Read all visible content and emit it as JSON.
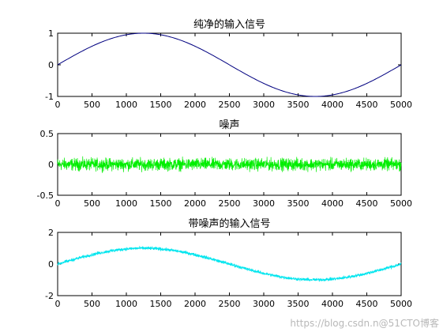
{
  "chart_data": [
    {
      "type": "line",
      "title": "纯净的输入信号",
      "xlim": [
        0,
        5000
      ],
      "ylim": [
        -1,
        1
      ],
      "xticks": [
        0,
        500,
        1000,
        1500,
        2000,
        2500,
        3000,
        3500,
        4000,
        4500,
        5000
      ],
      "yticks": [
        -1,
        0,
        1
      ],
      "grid": false,
      "series": [
        {
          "color": "#000080",
          "function": "sin",
          "amplitude": 1,
          "period": 5000,
          "x_start": 0,
          "x_end": 5000
        }
      ]
    },
    {
      "type": "line",
      "title": "噪声",
      "xlim": [
        0,
        5000
      ],
      "ylim": [
        -0.5,
        0.5
      ],
      "xticks": [
        0,
        500,
        1000,
        1500,
        2000,
        2500,
        3000,
        3500,
        4000,
        4500,
        5000
      ],
      "yticks": [
        -0.5,
        0,
        0.5
      ],
      "grid": false,
      "series": [
        {
          "color": "#00ee00",
          "function": "noise",
          "amplitude": 0.1,
          "center": 0,
          "x_start": 0,
          "x_end": 5000
        }
      ]
    },
    {
      "type": "line",
      "title": "带噪声的输入信号",
      "xlim": [
        0,
        5000
      ],
      "ylim": [
        -2,
        2
      ],
      "xticks": [
        0,
        500,
        1000,
        1500,
        2000,
        2500,
        3000,
        3500,
        4000,
        4500,
        5000
      ],
      "yticks": [
        -2,
        0,
        2
      ],
      "grid": false,
      "series": [
        {
          "color": "#00e5ee",
          "function": "sin+noise",
          "amplitude": 1,
          "noise_amplitude": 0.1,
          "period": 5000,
          "x_start": 0,
          "x_end": 5000
        }
      ]
    }
  ],
  "watermark": "https://blog.csdn.n@51CTO博客"
}
